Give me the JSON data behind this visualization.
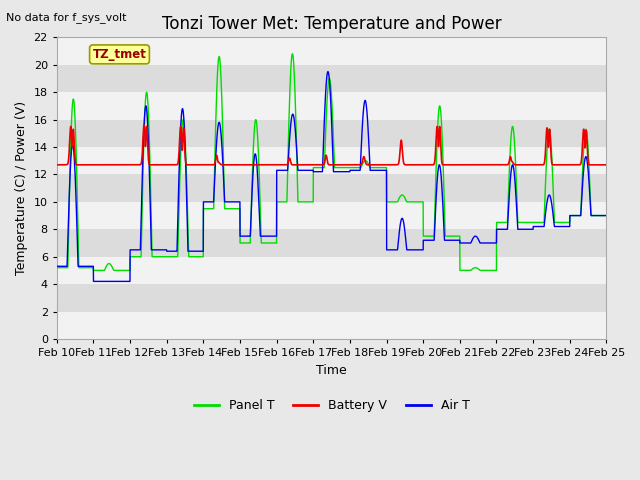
{
  "title": "Tonzi Tower Met: Temperature and Power",
  "xlabel": "Time",
  "ylabel": "Temperature (C) / Power (V)",
  "annotation_text": "No data for f_sys_volt",
  "legend_label_text": "TZ_tmet",
  "ylim": [
    0,
    22
  ],
  "yticks": [
    0,
    2,
    4,
    6,
    8,
    10,
    12,
    14,
    16,
    18,
    20,
    22
  ],
  "xtick_labels": [
    "Feb 10",
    "Feb 11",
    "Feb 12",
    "Feb 13",
    "Feb 14",
    "Feb 15",
    "Feb 16",
    "Feb 17",
    "Feb 18",
    "Feb 19",
    "Feb 20",
    "Feb 21",
    "Feb 22",
    "Feb 23",
    "Feb 24",
    "Feb 25"
  ],
  "line_colors": {
    "panel_t": "#00dd00",
    "battery_v": "#ee0000",
    "air_t": "#0000ee"
  },
  "legend_entries": [
    "Panel T",
    "Battery V",
    "Air T"
  ],
  "bg_color": "#e8e8e8",
  "band_colors": [
    "#f2f2f2",
    "#dcdcdc"
  ],
  "title_fontsize": 12,
  "axis_fontsize": 9,
  "tick_fontsize": 8
}
